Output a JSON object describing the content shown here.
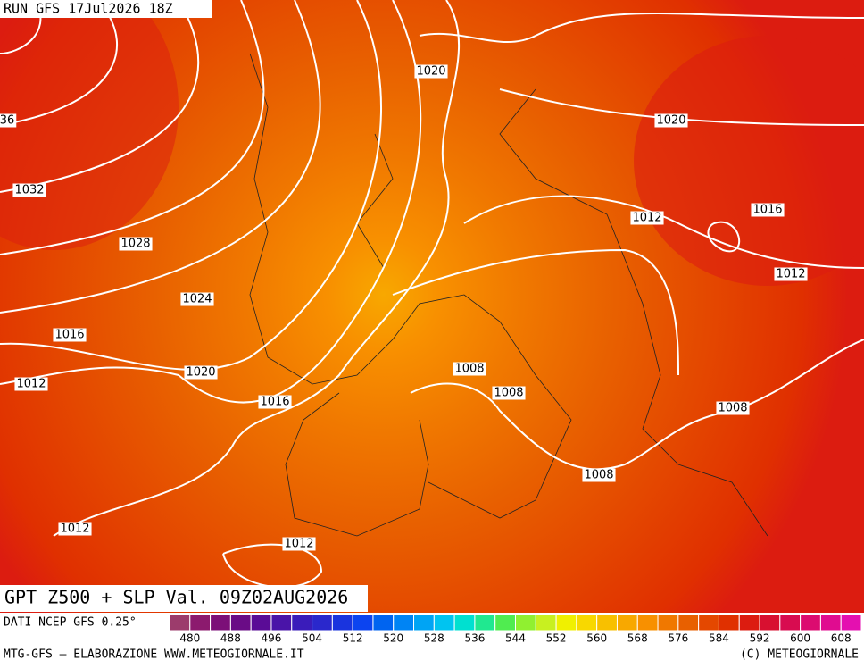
{
  "header": {
    "run": "RUN GFS 17Jul2026 18Z"
  },
  "map": {
    "isobar_labels": [
      1020,
      36,
      1020,
      1032,
      1016,
      1028,
      1012,
      1024,
      1012,
      1016,
      1008,
      1020,
      1008,
      1012,
      1016,
      1008,
      1008,
      1012,
      1012
    ]
  },
  "title": "GPT Z500 + SLP Val. 09Z02AUG2026",
  "source": "DATI NCEP GFS 0.25°",
  "colorbar": {
    "ticks": [
      480,
      488,
      496,
      504,
      512,
      520,
      528,
      536,
      544,
      552,
      560,
      568,
      576,
      584,
      592,
      600,
      608
    ],
    "colors": [
      "#9c3c6c",
      "#8c1a6e",
      "#7c1078",
      "#6a0c86",
      "#5a0c96",
      "#4a14a8",
      "#3a1cba",
      "#2a28cc",
      "#1a34de",
      "#0c44f0",
      "#0064f0",
      "#0084f4",
      "#00a4f4",
      "#00c4f0",
      "#00e0d0",
      "#20e890",
      "#50ec50",
      "#90f030",
      "#c8f020",
      "#f0f000",
      "#f8d800",
      "#f8c000",
      "#f8a800",
      "#f89000",
      "#f07800",
      "#e86000",
      "#e44800",
      "#e03000",
      "#dc1c10",
      "#d81030",
      "#d80c50",
      "#dc0c70",
      "#e00c90",
      "#e410b0"
    ]
  },
  "footer": {
    "left": "MTG-GFS — ELABORAZIONE WWW.METEOGIORNALE.IT",
    "right": "(C) METEOGIORNALE"
  }
}
